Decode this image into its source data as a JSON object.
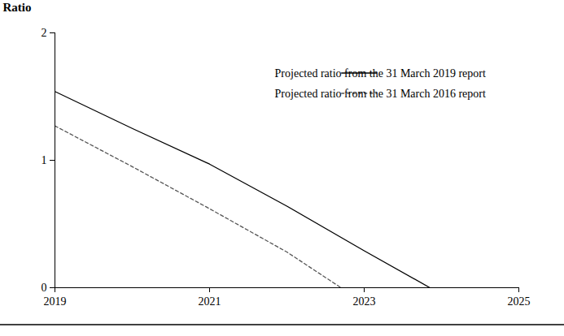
{
  "chart_data": {
    "type": "line",
    "y_label": "Ratio",
    "xlim": [
      2019,
      2025
    ],
    "xticks": [
      2019,
      2021,
      2023,
      2025
    ],
    "ylim": [
      0,
      2
    ],
    "yticks": [
      0,
      1,
      2
    ],
    "grid": false,
    "legend": "top-right",
    "series": [
      {
        "name": "Projected ratio from the 31 March 2019 report",
        "color": "#000000",
        "line_style": "solid",
        "x": [
          2019,
          2020,
          2021,
          2022,
          2023,
          2023.85
        ],
        "values": [
          1.54,
          1.25,
          0.97,
          0.64,
          0.29,
          0
        ]
      },
      {
        "name": "Projected ratio from the 31 March 2016 report",
        "color": "#555555",
        "line_style": "dashed",
        "x": [
          2019,
          2020,
          2021,
          2022,
          2022.7
        ],
        "values": [
          1.27,
          0.95,
          0.62,
          0.28,
          0
        ]
      }
    ]
  }
}
